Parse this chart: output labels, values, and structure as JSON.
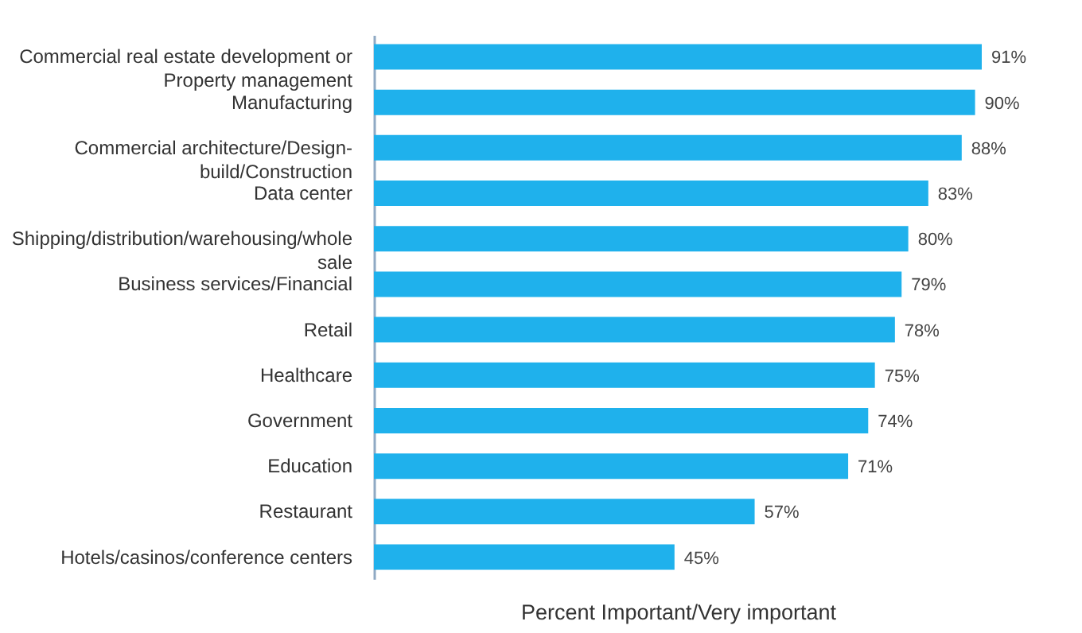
{
  "chart_data": {
    "type": "bar",
    "orientation": "horizontal",
    "xlabel": "Percent Important/Very important",
    "categories": [
      "Commercial real estate development or Property management",
      "Manufacturing",
      "Commercial architecture/Design-build/Construction",
      "Data center",
      "Shipping/distribution/warehousing/whole sale",
      "Business services/Financial",
      "Retail",
      "Healthcare",
      "Government",
      "Education",
      "Restaurant",
      "Hotels/casinos/conference centers"
    ],
    "values": [
      91,
      90,
      88,
      83,
      80,
      79,
      78,
      75,
      74,
      71,
      57,
      45
    ],
    "value_labels": [
      "91%",
      "90%",
      "88%",
      "83%",
      "80%",
      "79%",
      "78%",
      "75%",
      "74%",
      "71%",
      "57%",
      "45%"
    ],
    "color": "#1fb1ec"
  }
}
